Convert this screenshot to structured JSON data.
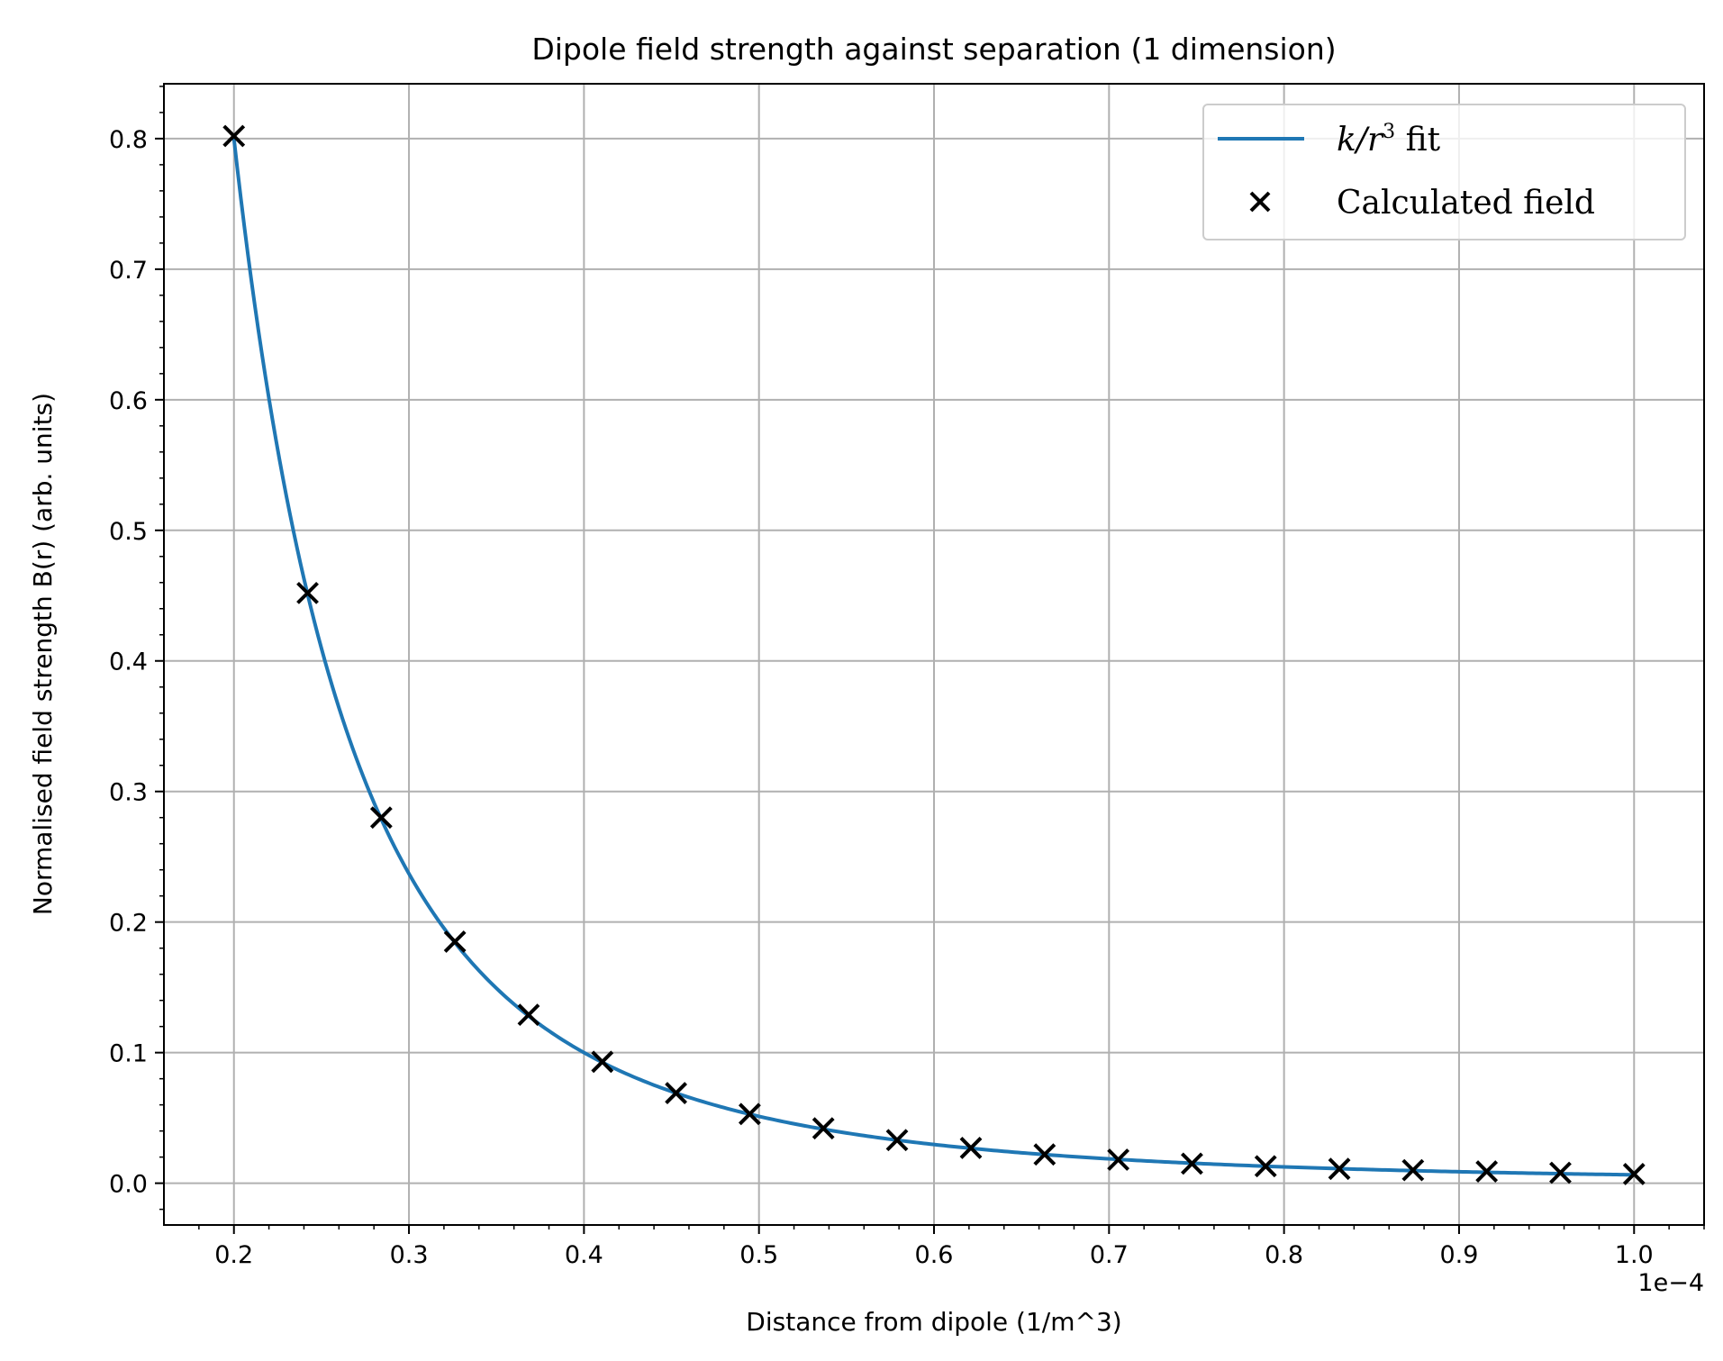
{
  "chart_data": {
    "type": "scatter",
    "title": "Dipole field strength against separation (1 dimension)",
    "xlabel": "Distance from dipole (1/m^3)",
    "ylabel": "Normalised field strength B(r) (arb. units)",
    "x_offset_label": "1e−4",
    "xlim": [
      0.16,
      1.04
    ],
    "ylim": [
      -0.032,
      0.842
    ],
    "x_ticks": [
      0.2,
      0.3,
      0.4,
      0.5,
      0.6,
      0.7,
      0.8,
      0.9,
      1.0
    ],
    "x_tick_labels": [
      "0.2",
      "0.3",
      "0.4",
      "0.5",
      "0.6",
      "0.7",
      "0.8",
      "0.9",
      "1.0"
    ],
    "y_ticks": [
      0.0,
      0.1,
      0.2,
      0.3,
      0.4,
      0.5,
      0.6,
      0.7,
      0.8
    ],
    "y_tick_labels": [
      "0.0",
      "0.1",
      "0.2",
      "0.3",
      "0.4",
      "0.5",
      "0.6",
      "0.7",
      "0.8"
    ],
    "grid": true,
    "legend": {
      "placement": "top-right",
      "fit_label_math": "k/r",
      "fit_label_exp": "3",
      "fit_label_suffix": " fit",
      "scatter_label": "Calculated field"
    },
    "series": [
      {
        "kind": "line",
        "color": "#1f77b4",
        "k": 0.0064,
        "x_start": 0.2,
        "x_end": 1.0
      },
      {
        "kind": "scatter",
        "marker": "x",
        "color": "#000000",
        "x": [
          0.2,
          0.2421,
          0.2842,
          0.3263,
          0.3684,
          0.4105,
          0.4526,
          0.4947,
          0.5368,
          0.5789,
          0.6211,
          0.6632,
          0.7053,
          0.7474,
          0.7895,
          0.8316,
          0.8737,
          0.9158,
          0.9579,
          1.0
        ],
        "y": [
          0.802,
          0.452,
          0.28,
          0.185,
          0.129,
          0.093,
          0.069,
          0.053,
          0.042,
          0.033,
          0.027,
          0.022,
          0.018,
          0.015,
          0.013,
          0.011,
          0.01,
          0.009,
          0.008,
          0.007
        ]
      }
    ]
  }
}
